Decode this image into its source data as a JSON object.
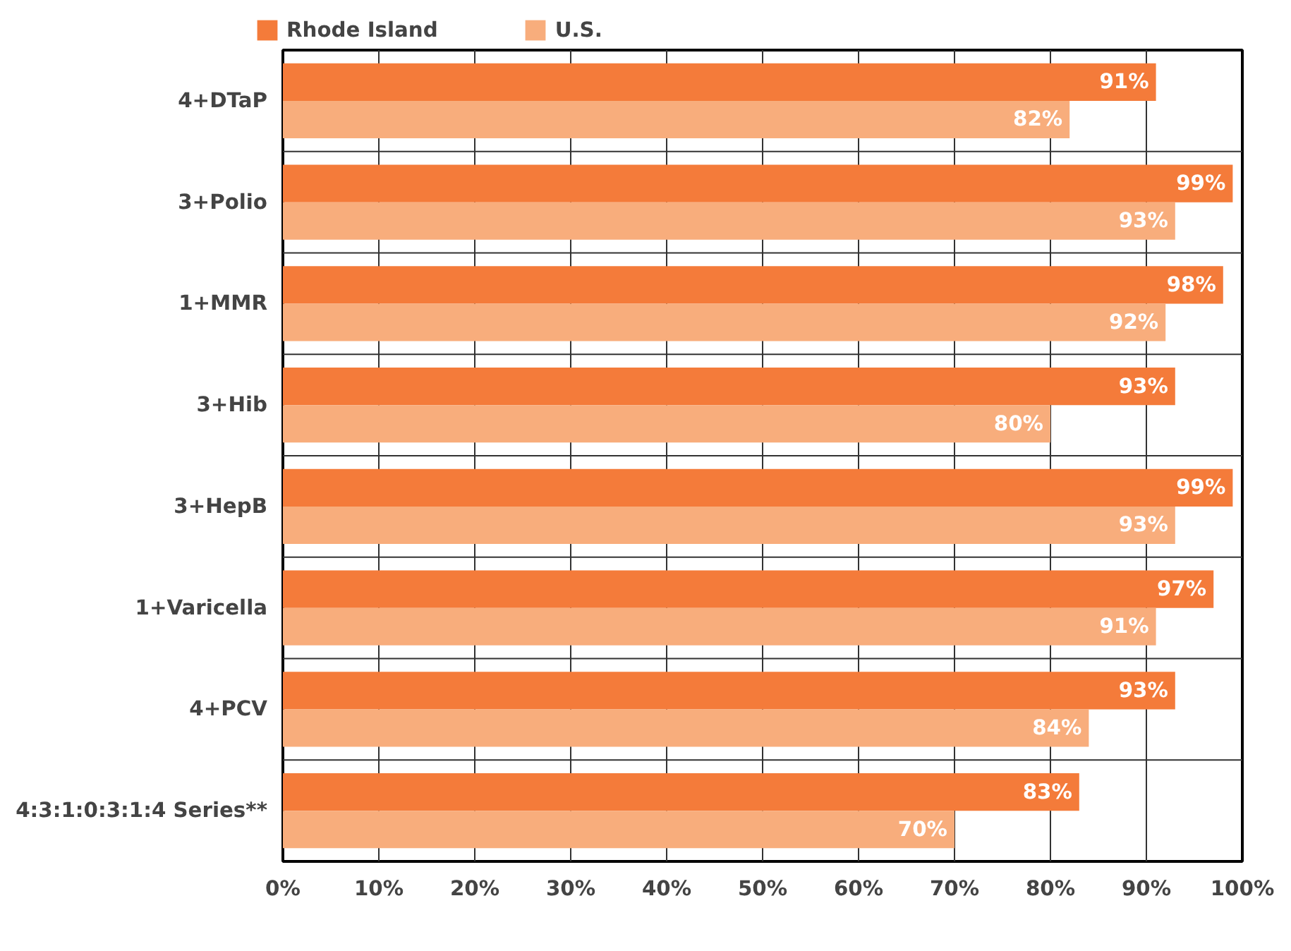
{
  "chart_data": {
    "type": "bar",
    "orientation": "horizontal",
    "categories": [
      "4+DTaP",
      "3+Polio",
      "1+MMR",
      "3+Hib",
      "3+HepB",
      "1+Varicella",
      "4+PCV",
      "4:3:1:0:3:1:4 Series**"
    ],
    "series": [
      {
        "name": "Rhode Island",
        "color": "#f47b3a",
        "values": [
          91,
          99,
          98,
          93,
          99,
          97,
          93,
          83
        ],
        "value_labels": [
          "91%",
          "99%",
          "98%",
          "93%",
          "99%",
          "97%",
          "93%",
          "83%"
        ]
      },
      {
        "name": "U.S.",
        "color": "#f8ad7c",
        "values": [
          82,
          93,
          92,
          80,
          93,
          91,
          84,
          70
        ],
        "value_labels": [
          "82%",
          "93%",
          "92%",
          "80%",
          "93%",
          "91%",
          "84%",
          "70%"
        ]
      }
    ],
    "xlim": [
      0,
      100
    ],
    "xticks": [
      {
        "value": 0,
        "label": "0%"
      },
      {
        "value": 10,
        "label": "10%"
      },
      {
        "value": 20,
        "label": "20%"
      },
      {
        "value": 30,
        "label": "30%"
      },
      {
        "value": 40,
        "label": "40%"
      },
      {
        "value": 50,
        "label": "50%"
      },
      {
        "value": 60,
        "label": "60%"
      },
      {
        "value": 70,
        "label": "70%"
      },
      {
        "value": 80,
        "label": "80%"
      },
      {
        "value": 90,
        "label": "90%"
      },
      {
        "value": 100,
        "label": "100%"
      }
    ],
    "grid": true,
    "legend": "top"
  }
}
